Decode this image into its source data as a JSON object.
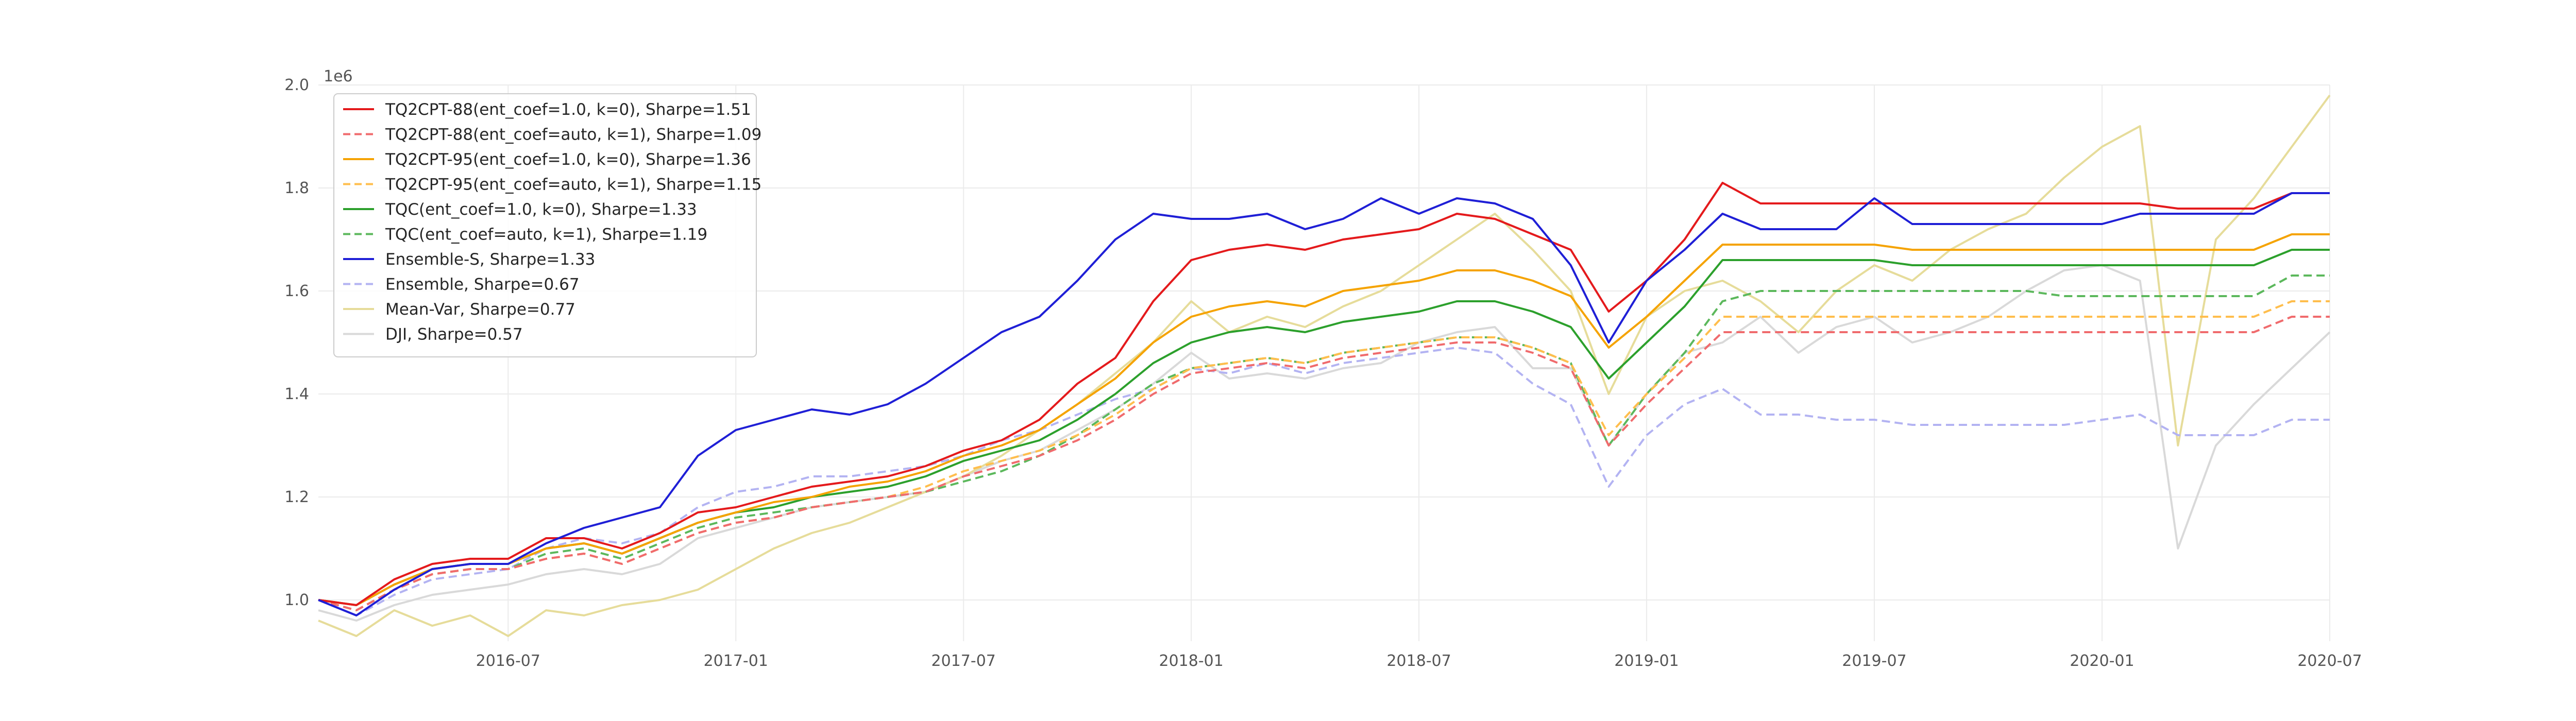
{
  "chart_data": {
    "type": "line",
    "title": "",
    "xlabel": "",
    "ylabel": "",
    "y_offset_label": "1e6",
    "ylim": [
      0.92,
      2.0
    ],
    "y_ticks": [
      1.0,
      1.2,
      1.4,
      1.6,
      1.8,
      2.0
    ],
    "y_tick_labels": [
      "1.0",
      "1.2",
      "1.4",
      "1.6",
      "1.8",
      "2.0"
    ],
    "x_tick_labels": [
      "2016-07",
      "2017-01",
      "2017-07",
      "2018-01",
      "2018-07",
      "2019-01",
      "2019-07",
      "2020-01",
      "2020-07"
    ],
    "x_range": [
      "2016-02",
      "2020-07"
    ],
    "x": [
      "2016-02",
      "2016-03",
      "2016-04",
      "2016-05",
      "2016-06",
      "2016-07",
      "2016-08",
      "2016-09",
      "2016-10",
      "2016-11",
      "2016-12",
      "2017-01",
      "2017-02",
      "2017-03",
      "2017-04",
      "2017-05",
      "2017-06",
      "2017-07",
      "2017-08",
      "2017-09",
      "2017-10",
      "2017-11",
      "2017-12",
      "2018-01",
      "2018-02",
      "2018-03",
      "2018-04",
      "2018-05",
      "2018-06",
      "2018-07",
      "2018-08",
      "2018-09",
      "2018-10",
      "2018-11",
      "2018-12",
      "2019-01",
      "2019-02",
      "2019-03",
      "2019-04",
      "2019-05",
      "2019-06",
      "2019-07",
      "2019-08",
      "2019-09",
      "2019-10",
      "2019-11",
      "2019-12",
      "2020-01",
      "2020-02",
      "2020-03",
      "2020-04",
      "2020-05",
      "2020-06",
      "2020-07"
    ],
    "grid": true,
    "legend_position": "top-left",
    "series": [
      {
        "name": "TQ2CPT-88(ent_coef=1.0, k=0), Sharpe=1.51",
        "color": "#e41a1c",
        "dash": "solid",
        "values": [
          1.0,
          0.99,
          1.04,
          1.07,
          1.08,
          1.08,
          1.12,
          1.12,
          1.1,
          1.13,
          1.17,
          1.18,
          1.2,
          1.22,
          1.23,
          1.24,
          1.26,
          1.29,
          1.31,
          1.35,
          1.42,
          1.47,
          1.58,
          1.66,
          1.68,
          1.69,
          1.68,
          1.7,
          1.71,
          1.72,
          1.75,
          1.74,
          1.71,
          1.68,
          1.56,
          1.62,
          1.7,
          1.81,
          1.77,
          1.77,
          1.77,
          1.77,
          1.77,
          1.77,
          1.77,
          1.77,
          1.77,
          1.77,
          1.77,
          1.76,
          1.76,
          1.76,
          1.79,
          1.79
        ]
      },
      {
        "name": "TQ2CPT-88(ent_coef=auto, k=1), Sharpe=1.09",
        "color": "#f06b6d",
        "dash": "dashed",
        "values": [
          1.0,
          0.98,
          1.02,
          1.05,
          1.06,
          1.06,
          1.08,
          1.09,
          1.07,
          1.1,
          1.13,
          1.15,
          1.16,
          1.18,
          1.19,
          1.2,
          1.21,
          1.24,
          1.26,
          1.28,
          1.31,
          1.35,
          1.4,
          1.44,
          1.45,
          1.46,
          1.45,
          1.47,
          1.48,
          1.49,
          1.5,
          1.5,
          1.48,
          1.45,
          1.3,
          1.38,
          1.45,
          1.52,
          1.52,
          1.52,
          1.52,
          1.52,
          1.52,
          1.52,
          1.52,
          1.52,
          1.52,
          1.52,
          1.52,
          1.52,
          1.52,
          1.52,
          1.55,
          1.55
        ]
      },
      {
        "name": "TQ2CPT-95(ent_coef=1.0, k=0), Sharpe=1.36",
        "color": "#f5a300",
        "dash": "solid",
        "values": [
          1.0,
          0.99,
          1.03,
          1.06,
          1.07,
          1.07,
          1.1,
          1.11,
          1.09,
          1.12,
          1.15,
          1.17,
          1.19,
          1.2,
          1.22,
          1.23,
          1.25,
          1.28,
          1.3,
          1.33,
          1.38,
          1.43,
          1.5,
          1.55,
          1.57,
          1.58,
          1.57,
          1.6,
          1.61,
          1.62,
          1.64,
          1.64,
          1.62,
          1.59,
          1.49,
          1.55,
          1.62,
          1.69,
          1.69,
          1.69,
          1.69,
          1.69,
          1.68,
          1.68,
          1.68,
          1.68,
          1.68,
          1.68,
          1.68,
          1.68,
          1.68,
          1.68,
          1.71,
          1.71
        ]
      },
      {
        "name": "TQ2CPT-95(ent_coef=auto, k=1), Sharpe=1.15",
        "color": "#ffbe4d",
        "dash": "dashed",
        "values": [
          1.0,
          0.98,
          1.02,
          1.05,
          1.06,
          1.06,
          1.08,
          1.09,
          1.07,
          1.1,
          1.13,
          1.15,
          1.16,
          1.18,
          1.19,
          1.2,
          1.22,
          1.25,
          1.27,
          1.29,
          1.32,
          1.36,
          1.41,
          1.45,
          1.46,
          1.47,
          1.46,
          1.48,
          1.49,
          1.5,
          1.51,
          1.51,
          1.49,
          1.46,
          1.32,
          1.4,
          1.47,
          1.55,
          1.55,
          1.55,
          1.55,
          1.55,
          1.55,
          1.55,
          1.55,
          1.55,
          1.55,
          1.55,
          1.55,
          1.55,
          1.55,
          1.55,
          1.58,
          1.58
        ]
      },
      {
        "name": "TQC(ent_coef=1.0, k=0), Sharpe=1.33",
        "color": "#2ca02c",
        "dash": "solid",
        "values": [
          1.0,
          0.99,
          1.03,
          1.06,
          1.07,
          1.07,
          1.1,
          1.11,
          1.09,
          1.12,
          1.15,
          1.17,
          1.18,
          1.2,
          1.21,
          1.22,
          1.24,
          1.27,
          1.29,
          1.31,
          1.35,
          1.4,
          1.46,
          1.5,
          1.52,
          1.53,
          1.52,
          1.54,
          1.55,
          1.56,
          1.58,
          1.58,
          1.56,
          1.53,
          1.43,
          1.5,
          1.57,
          1.66,
          1.66,
          1.66,
          1.66,
          1.66,
          1.65,
          1.65,
          1.65,
          1.65,
          1.65,
          1.65,
          1.65,
          1.65,
          1.65,
          1.65,
          1.68,
          1.68
        ]
      },
      {
        "name": "TQC(ent_coef=auto, k=1), Sharpe=1.19",
        "color": "#5cb85c",
        "dash": "dashed",
        "values": [
          1.0,
          0.98,
          1.02,
          1.05,
          1.06,
          1.06,
          1.09,
          1.1,
          1.08,
          1.11,
          1.14,
          1.16,
          1.17,
          1.18,
          1.19,
          1.2,
          1.21,
          1.23,
          1.25,
          1.28,
          1.32,
          1.37,
          1.42,
          1.45,
          1.46,
          1.47,
          1.46,
          1.48,
          1.49,
          1.5,
          1.51,
          1.51,
          1.49,
          1.46,
          1.3,
          1.4,
          1.48,
          1.58,
          1.6,
          1.6,
          1.6,
          1.6,
          1.6,
          1.6,
          1.6,
          1.6,
          1.59,
          1.59,
          1.59,
          1.59,
          1.59,
          1.59,
          1.63,
          1.63
        ]
      },
      {
        "name": "Ensemble-S, Sharpe=1.33",
        "color": "#1f1fd6",
        "dash": "solid",
        "values": [
          1.0,
          0.97,
          1.02,
          1.06,
          1.07,
          1.07,
          1.11,
          1.14,
          1.16,
          1.18,
          1.28,
          1.33,
          1.35,
          1.37,
          1.36,
          1.38,
          1.42,
          1.47,
          1.52,
          1.55,
          1.62,
          1.7,
          1.75,
          1.74,
          1.74,
          1.75,
          1.72,
          1.74,
          1.78,
          1.75,
          1.78,
          1.77,
          1.74,
          1.65,
          1.5,
          1.62,
          1.68,
          1.75,
          1.72,
          1.72,
          1.72,
          1.78,
          1.73,
          1.73,
          1.73,
          1.73,
          1.73,
          1.73,
          1.75,
          1.75,
          1.75,
          1.75,
          1.79,
          1.79
        ]
      },
      {
        "name": "Ensemble, Sharpe=0.67",
        "color": "#b3b3f2",
        "dash": "dashed",
        "values": [
          1.0,
          0.97,
          1.01,
          1.04,
          1.05,
          1.06,
          1.1,
          1.12,
          1.11,
          1.13,
          1.18,
          1.21,
          1.22,
          1.24,
          1.24,
          1.25,
          1.26,
          1.28,
          1.31,
          1.33,
          1.36,
          1.39,
          1.41,
          1.45,
          1.44,
          1.46,
          1.44,
          1.46,
          1.47,
          1.48,
          1.49,
          1.48,
          1.42,
          1.38,
          1.22,
          1.32,
          1.38,
          1.41,
          1.36,
          1.36,
          1.35,
          1.35,
          1.34,
          1.34,
          1.34,
          1.34,
          1.34,
          1.35,
          1.36,
          1.32,
          1.32,
          1.32,
          1.35,
          1.35
        ]
      },
      {
        "name": "Mean-Var, Sharpe=0.77",
        "color": "#e6dc9a",
        "dash": "solid",
        "values": [
          0.96,
          0.93,
          0.98,
          0.95,
          0.97,
          0.93,
          0.98,
          0.97,
          0.99,
          1.0,
          1.02,
          1.06,
          1.1,
          1.13,
          1.15,
          1.18,
          1.21,
          1.24,
          1.28,
          1.33,
          1.38,
          1.44,
          1.5,
          1.58,
          1.52,
          1.55,
          1.53,
          1.57,
          1.6,
          1.65,
          1.7,
          1.75,
          1.68,
          1.6,
          1.4,
          1.55,
          1.6,
          1.62,
          1.58,
          1.52,
          1.6,
          1.65,
          1.62,
          1.68,
          1.72,
          1.75,
          1.82,
          1.88,
          1.92,
          1.3,
          1.7,
          1.78,
          1.88,
          1.98
        ]
      },
      {
        "name": "DJI, Sharpe=0.57",
        "color": "#d9d9d9",
        "dash": "solid",
        "values": [
          0.98,
          0.96,
          0.99,
          1.01,
          1.02,
          1.03,
          1.05,
          1.06,
          1.05,
          1.07,
          1.12,
          1.14,
          1.16,
          1.18,
          1.19,
          1.2,
          1.21,
          1.24,
          1.27,
          1.29,
          1.33,
          1.37,
          1.42,
          1.48,
          1.43,
          1.44,
          1.43,
          1.45,
          1.46,
          1.5,
          1.52,
          1.53,
          1.45,
          1.45,
          1.3,
          1.4,
          1.48,
          1.5,
          1.55,
          1.48,
          1.53,
          1.55,
          1.5,
          1.52,
          1.55,
          1.6,
          1.64,
          1.65,
          1.62,
          1.1,
          1.3,
          1.38,
          1.45,
          1.52
        ]
      }
    ]
  }
}
